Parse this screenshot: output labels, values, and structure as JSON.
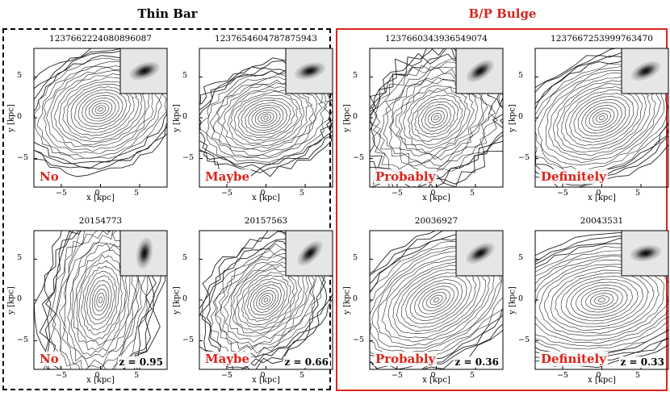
{
  "groups": {
    "thin_bar": {
      "title": "Thin Bar"
    },
    "bp_bulge": {
      "title": "B/P Bulge"
    }
  },
  "axes": {
    "xlabel": "x [kpc]",
    "ylabel": "y [kpc]",
    "x_ticks": [
      "−5",
      "0",
      "5"
    ],
    "y_ticks": [
      "5",
      "0",
      "−5"
    ]
  },
  "panels": [
    {
      "id": "1237662224080896087",
      "group": "thin_bar",
      "verdict": "No",
      "z": ""
    },
    {
      "id": "1237654604787875943",
      "group": "thin_bar",
      "verdict": "Maybe",
      "z": ""
    },
    {
      "id": "1237660343936549074",
      "group": "bp_bulge",
      "verdict": "Probably",
      "z": ""
    },
    {
      "id": "1237667253999763470",
      "group": "bp_bulge",
      "verdict": "Definitely",
      "z": ""
    },
    {
      "id": "20154773",
      "group": "thin_bar",
      "verdict": "No",
      "z": "z = 0.95"
    },
    {
      "id": "20157563",
      "group": "thin_bar",
      "verdict": "Maybe",
      "z": "z = 0.66"
    },
    {
      "id": "20036927",
      "group": "bp_bulge",
      "verdict": "Probably",
      "z": "z = 0.36"
    },
    {
      "id": "20043531",
      "group": "bp_bulge",
      "verdict": "Definitely",
      "z": "z = 0.33"
    }
  ],
  "colors": {
    "accent_red": "#d9251c",
    "contour": "#222222",
    "frame": "#000000"
  }
}
